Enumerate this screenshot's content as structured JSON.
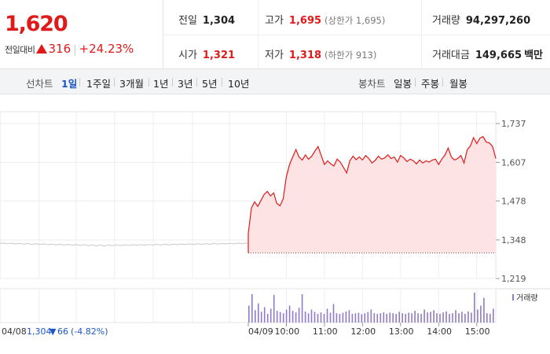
{
  "quote": {
    "price": "1,620",
    "change_label": "전일대비",
    "change_value": "316",
    "change_rate": "+24.23%",
    "stats": [
      {
        "key": "전일",
        "value": "1,304",
        "sub": "",
        "up": false
      },
      {
        "key": "고가",
        "value": "1,695",
        "sub": "(상한가 1,695)",
        "up": true
      },
      {
        "key": "거래량",
        "value": "94,297,260",
        "sub": "",
        "up": false
      },
      {
        "key": "시가",
        "value": "1,321",
        "sub": "",
        "up": true
      },
      {
        "key": "저가",
        "value": "1,318",
        "sub": "(하한가 913)",
        "up": true
      },
      {
        "key": "거래대금",
        "value": "149,665",
        "sub": "",
        "unit": "백만",
        "up": false
      }
    ]
  },
  "tabs": {
    "line_label": "선차트",
    "periods": [
      "1일",
      "1주일",
      "3개월",
      "1년",
      "3년",
      "5년",
      "10년"
    ],
    "selected": "1일",
    "candle_label": "봉차트",
    "candles": [
      "일봉",
      "주봉",
      "월봉"
    ]
  },
  "colors": {
    "up": "#e01a1a",
    "down": "#1a56c8",
    "fill": "#fde3e3",
    "prev": "#c8c8c8",
    "volume": "#8f7bc7"
  },
  "chart_data": {
    "type": "line",
    "y_ticks": [
      "1,737",
      "1,607",
      "1,478",
      "1,348",
      "1,219"
    ],
    "ylim": [
      1219,
      1737
    ],
    "base_price": 1304,
    "x_ticks": [
      "04/09",
      "10:00",
      "11:00",
      "12:00",
      "13:00",
      "14:00",
      "15:00"
    ],
    "prev_day": {
      "date": "04/08",
      "close": "1,304",
      "change": "66",
      "rate": "(-4.82%)"
    },
    "volume_legend": "거래량",
    "series": [
      {
        "x": [
          "09:00",
          "09:05",
          "09:10",
          "09:15",
          "09:20",
          "09:25",
          "09:30",
          "09:35",
          "09:40",
          "09:45",
          "09:50",
          "09:55",
          "10:00",
          "10:05",
          "10:10",
          "10:15",
          "10:20",
          "10:25",
          "10:30",
          "10:35",
          "10:40",
          "10:45",
          "10:50",
          "10:55",
          "11:00",
          "11:05",
          "11:10",
          "11:15",
          "11:20",
          "11:25",
          "11:30",
          "11:35",
          "11:40",
          "11:45",
          "11:50",
          "11:55",
          "12:00",
          "12:05",
          "12:10",
          "12:15",
          "12:20",
          "12:25",
          "12:30",
          "12:35",
          "12:40",
          "12:45",
          "12:50",
          "12:55",
          "13:00",
          "13:05",
          "13:10",
          "13:15",
          "13:20",
          "13:25",
          "13:30",
          "13:35",
          "13:40",
          "13:45",
          "13:50",
          "13:55",
          "14:00",
          "14:05",
          "14:10",
          "14:15",
          "14:20",
          "14:25",
          "14:30",
          "14:35",
          "14:40",
          "14:45",
          "14:50",
          "14:55",
          "15:00",
          "15:05",
          "15:10",
          "15:15",
          "15:20",
          "15:25",
          "15:30"
        ],
        "y": [
          1370,
          1455,
          1475,
          1460,
          1480,
          1500,
          1510,
          1495,
          1505,
          1470,
          1462,
          1485,
          1560,
          1600,
          1625,
          1650,
          1625,
          1615,
          1632,
          1618,
          1628,
          1645,
          1660,
          1630,
          1600,
          1612,
          1602,
          1595,
          1618,
          1608,
          1590,
          1572,
          1612,
          1628,
          1616,
          1625,
          1615,
          1630,
          1620,
          1605,
          1614,
          1628,
          1618,
          1622,
          1632,
          1620,
          1625,
          1608,
          1630,
          1622,
          1610,
          1618,
          1613,
          1602,
          1615,
          1605,
          1612,
          1608,
          1615,
          1618,
          1600,
          1618,
          1632,
          1655,
          1625,
          1615,
          1620,
          1630,
          1605,
          1650,
          1662,
          1690,
          1670,
          1688,
          1693,
          1675,
          1672,
          1660,
          1620
        ]
      }
    ],
    "volume": [
      55,
      92,
      40,
      62,
      35,
      50,
      28,
      45,
      90,
      38,
      34,
      30,
      42,
      55,
      38,
      33,
      48,
      92,
      36,
      30,
      42,
      35,
      28,
      33,
      28,
      45,
      32,
      60,
      30,
      28,
      32,
      36,
      40,
      28,
      30,
      32,
      27,
      30,
      34,
      42,
      30,
      28,
      30,
      33,
      28,
      32,
      30,
      28,
      35,
      30,
      28,
      32,
      30,
      38,
      30,
      28,
      42,
      33,
      35,
      40,
      30,
      28,
      33,
      36,
      28,
      30,
      40,
      30,
      35,
      28,
      36,
      32,
      97,
      42,
      55,
      80,
      30,
      28,
      45
    ]
  }
}
